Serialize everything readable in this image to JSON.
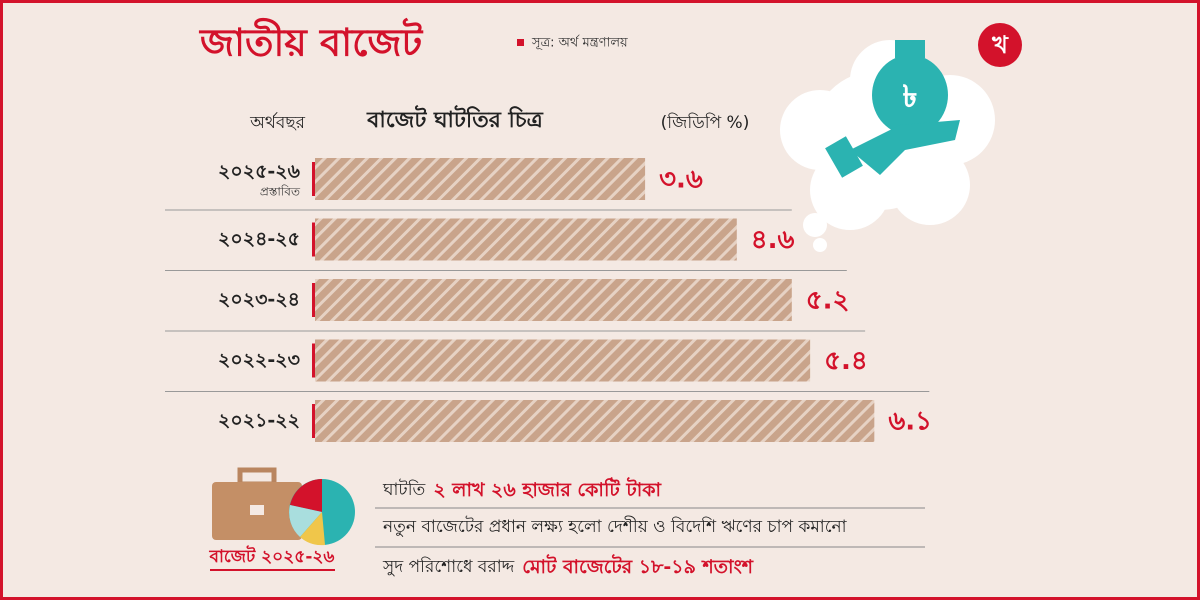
{
  "title": "জাতীয় বাজেট",
  "source": "সূত্র: অর্থ মন্ত্রণালয়",
  "logo": "খ",
  "chart_data": {
    "type": "bar",
    "orientation": "horizontal",
    "title": "বাজেট ঘাটতির চিত্র",
    "category_header": "অর্থবছর",
    "unit_label": "(জিডিপি %)",
    "categories": [
      "২০২৫-২৬",
      "২০২৪-২৫",
      "২০২৩-২৪",
      "২০২২-২৩",
      "২০২১-২২"
    ],
    "category_notes": [
      "প্রস্তাবিত",
      null,
      null,
      null,
      null
    ],
    "values": [
      3.6,
      4.6,
      5.2,
      5.4,
      6.1
    ],
    "value_labels": [
      "৩.৬",
      "৪.৬",
      "৫.২",
      "৫.৪",
      "৬.১"
    ],
    "color": "#c9a48b",
    "xlim": [
      0,
      6.5
    ]
  },
  "notes": [
    {
      "text": "ঘাটতি",
      "highlight": "২ লাখ ২৬ হাজার কোটি টাকা"
    },
    {
      "text": "নতুন বাজেটের প্রধান লক্ষ্য হলো দেশীয় ও বিদেশি ঋণের চাপ কমানো"
    },
    {
      "text": "সুদ পরিশোধে বরাদ্দ",
      "highlight": "মোট বাজেটের ১৮-১৯ শতাংশ"
    }
  ],
  "badge": "বাজেট ২০২৫-২৬"
}
